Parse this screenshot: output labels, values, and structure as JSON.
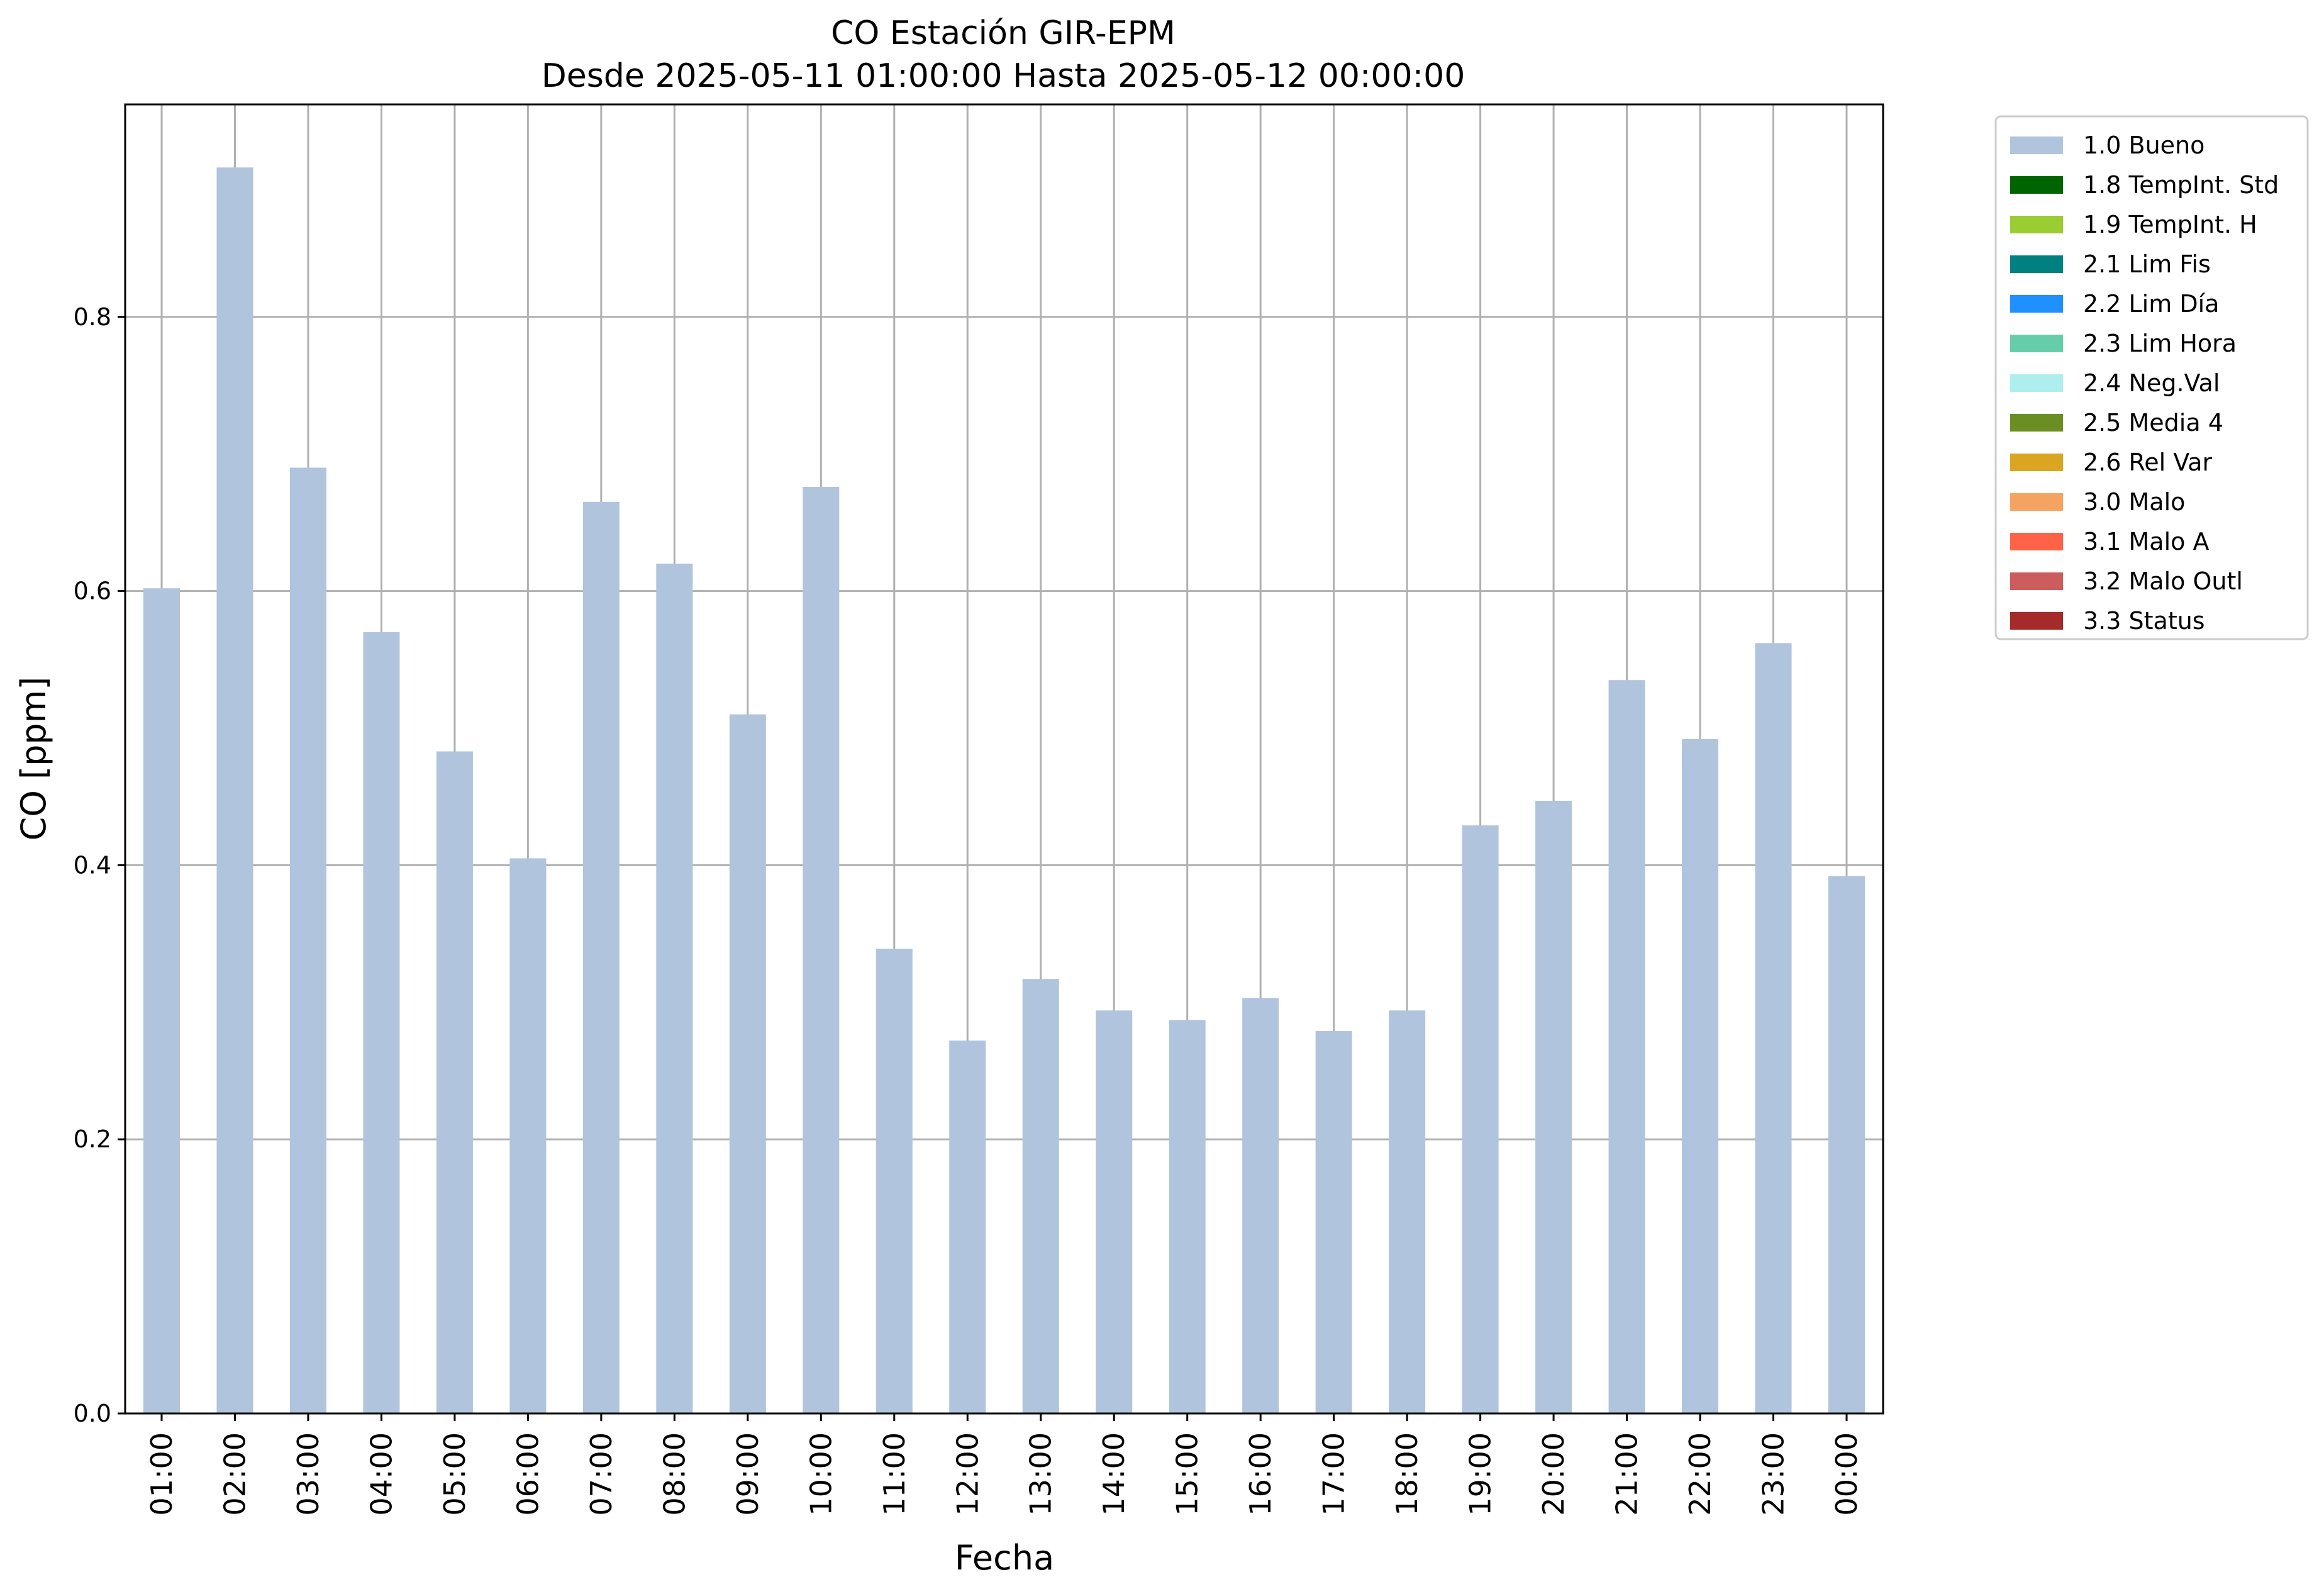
{
  "chart_data": {
    "type": "bar",
    "title": "CO Estación GIR-EPM",
    "subtitle": "Desde 2025-05-11 01:00:00 Hasta 2025-05-12 00:00:00",
    "xlabel": "Fecha",
    "ylabel": "CO [ppm]",
    "ylim": [
      0,
      0.955
    ],
    "yticks": [
      0.0,
      0.2,
      0.4,
      0.6,
      0.8
    ],
    "ytick_labels": [
      "0.0",
      "0.2",
      "0.4",
      "0.6",
      "0.8"
    ],
    "grid": true,
    "legend_position": "outside-top-right",
    "categories": [
      "01:00",
      "02:00",
      "03:00",
      "04:00",
      "05:00",
      "06:00",
      "07:00",
      "08:00",
      "09:00",
      "10:00",
      "11:00",
      "12:00",
      "13:00",
      "14:00",
      "15:00",
      "16:00",
      "17:00",
      "18:00",
      "19:00",
      "20:00",
      "21:00",
      "22:00",
      "23:00",
      "00:00"
    ],
    "series": [
      {
        "name": "1.0 Bueno",
        "color": "#b0c4de",
        "values": [
          0.602,
          0.909,
          0.69,
          0.57,
          0.483,
          0.405,
          0.665,
          0.62,
          0.51,
          0.676,
          0.339,
          0.272,
          0.317,
          0.294,
          0.287,
          0.303,
          0.279,
          0.294,
          0.429,
          0.447,
          0.535,
          0.492,
          0.562,
          0.392
        ]
      }
    ],
    "legend": [
      {
        "label": "1.0 Bueno",
        "color": "#b0c4de"
      },
      {
        "label": "1.8 TempInt. Std",
        "color": "#006400"
      },
      {
        "label": "1.9 TempInt. H",
        "color": "#9acd32"
      },
      {
        "label": "2.1 Lim Fis",
        "color": "#008080"
      },
      {
        "label": "2.2 Lim Día",
        "color": "#1e90ff"
      },
      {
        "label": "2.3 Lim Hora",
        "color": "#66cdaa"
      },
      {
        "label": "2.4 Neg.Val",
        "color": "#afeeee"
      },
      {
        "label": "2.5 Media 4",
        "color": "#6b8e23"
      },
      {
        "label": "2.6 Rel Var",
        "color": "#daa520"
      },
      {
        "label": "3.0 Malo",
        "color": "#f4a460"
      },
      {
        "label": "3.1 Malo A",
        "color": "#ff6347"
      },
      {
        "label": "3.2 Malo Outl",
        "color": "#cd5c5c"
      },
      {
        "label": "3.3 Status",
        "color": "#a52a2a"
      }
    ]
  }
}
